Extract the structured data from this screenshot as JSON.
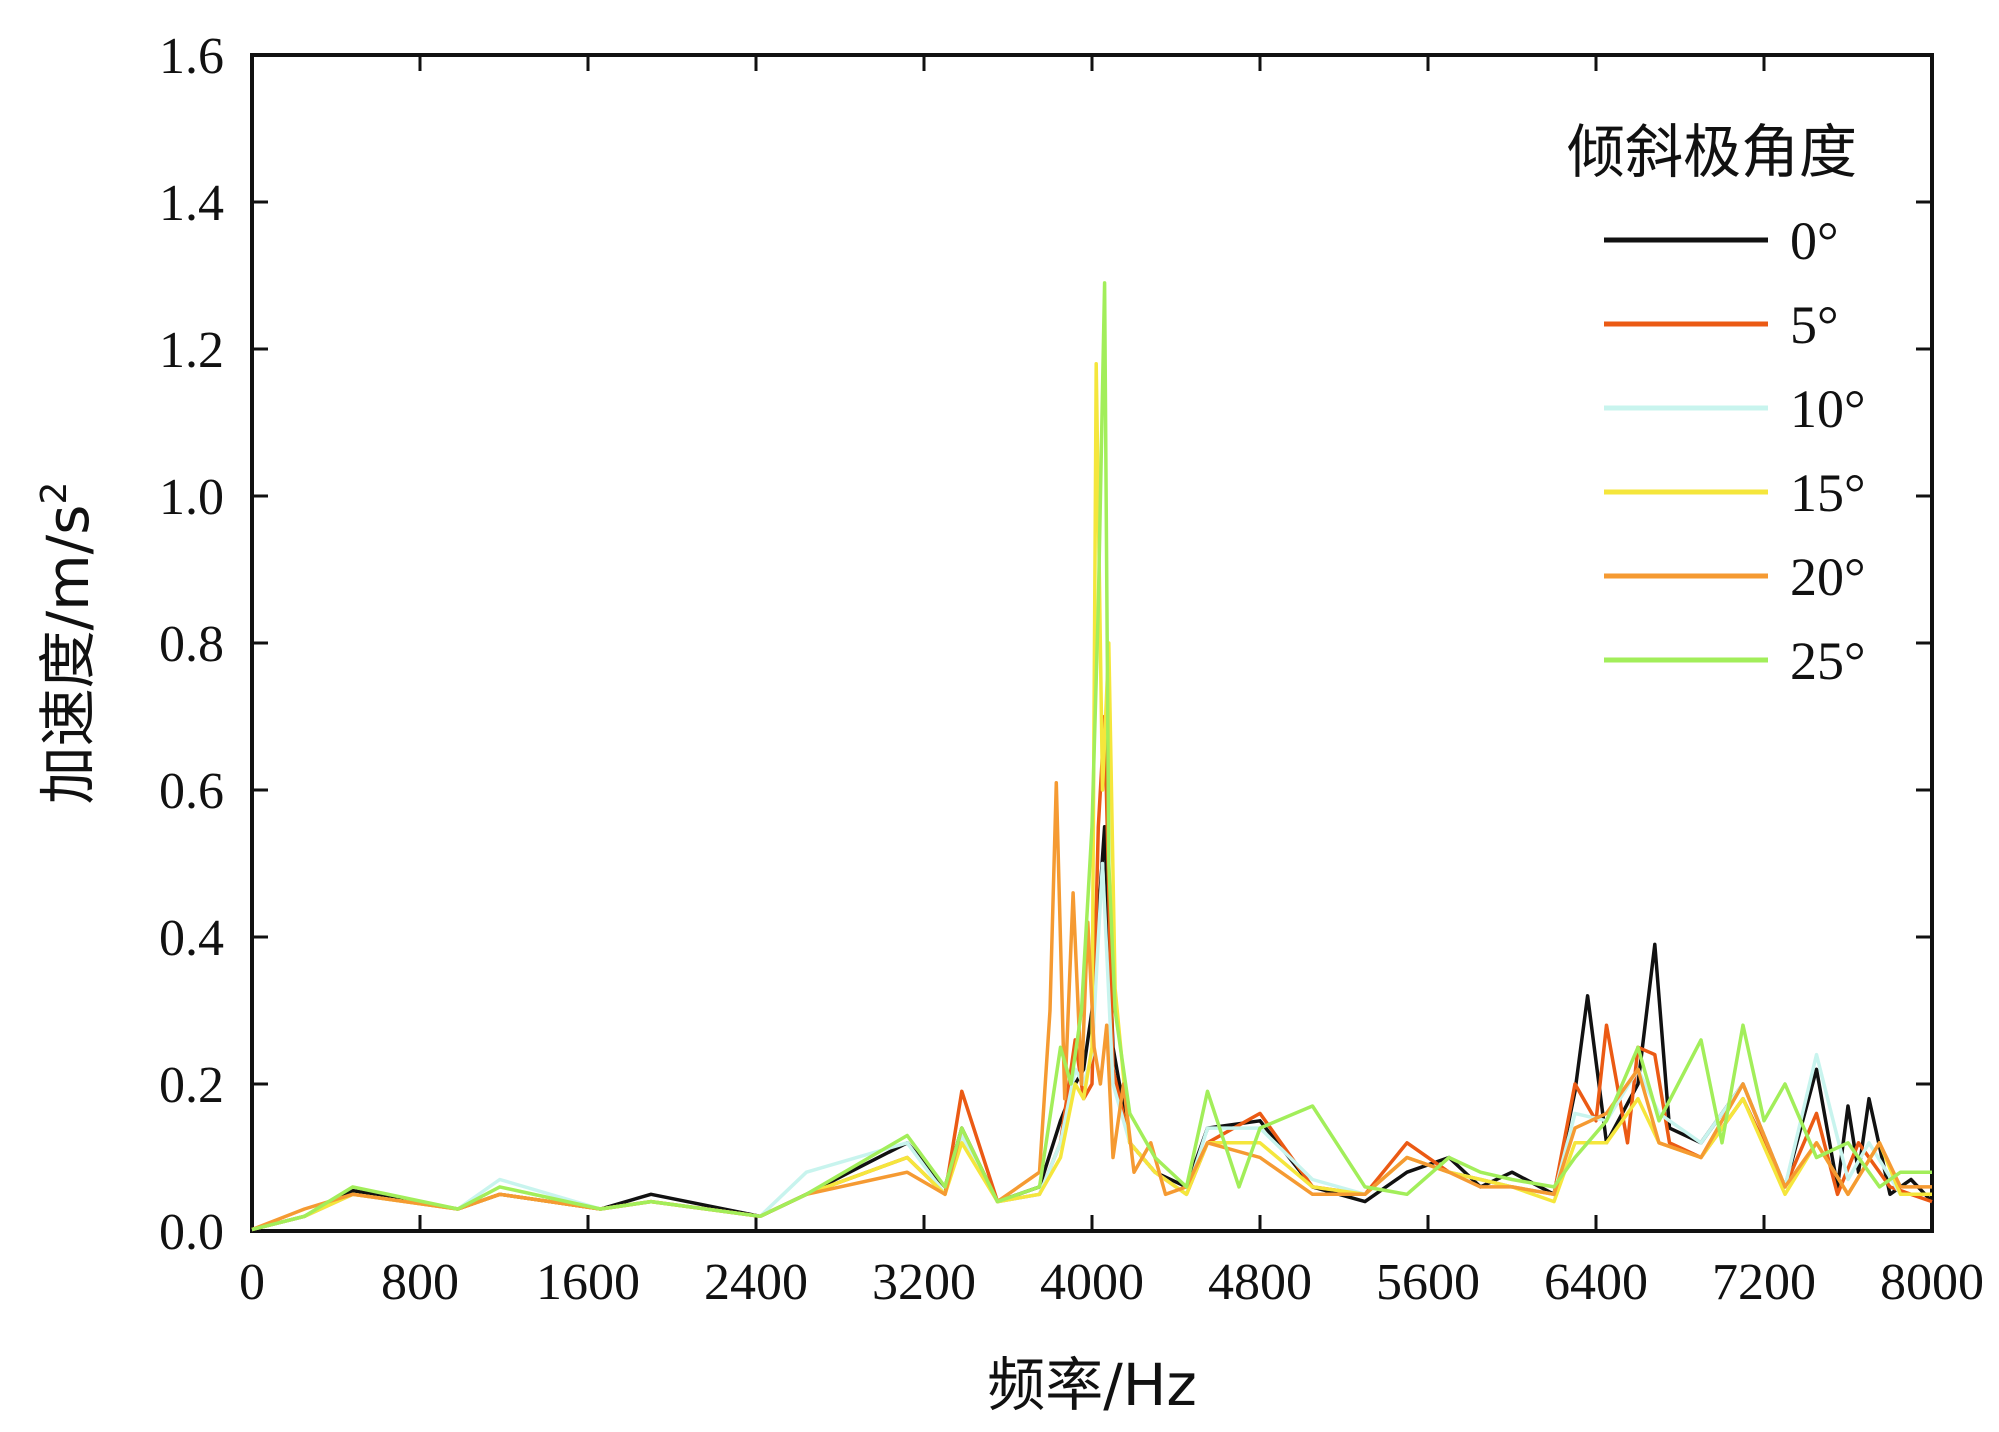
{
  "chart_data": {
    "type": "line",
    "xlabel": "频率/Hz",
    "ylabel_main": "加速度/m/s",
    "ylabel_sup": "2",
    "xlim": [
      0,
      8000
    ],
    "ylim": [
      0,
      1.6
    ],
    "xticks": [
      "0",
      "800",
      "1600",
      "2400",
      "3200",
      "4000",
      "4800",
      "5600",
      "6400",
      "7200",
      "8000"
    ],
    "yticks": [
      "0.0",
      "0.2",
      "0.4",
      "0.6",
      "0.8",
      "1.0",
      "1.2",
      "1.4",
      "1.6"
    ],
    "legend_title": "倾斜极角度",
    "legend_position": "top-right",
    "grid": false,
    "series": [
      {
        "name": "0°",
        "color": "#111111",
        "x": [
          0,
          250,
          480,
          980,
          1180,
          1660,
          1900,
          2420,
          2640,
          3120,
          3300,
          3380,
          3550,
          3750,
          3850,
          3920,
          3960,
          4000,
          4060,
          4100,
          4180,
          4300,
          4450,
          4550,
          4800,
          5050,
          5300,
          5500,
          5700,
          5850,
          6000,
          6200,
          6300,
          6360,
          6450,
          6600,
          6680,
          6750,
          6900,
          7100,
          7300,
          7450,
          7550,
          7600,
          7650,
          7700,
          7800,
          7900,
          8000
        ],
        "y": [
          0.002,
          0.02,
          0.055,
          0.03,
          0.05,
          0.03,
          0.05,
          0.02,
          0.05,
          0.12,
          0.06,
          0.14,
          0.04,
          0.06,
          0.15,
          0.2,
          0.22,
          0.3,
          0.55,
          0.25,
          0.12,
          0.08,
          0.06,
          0.14,
          0.15,
          0.06,
          0.04,
          0.08,
          0.1,
          0.06,
          0.08,
          0.05,
          0.19,
          0.32,
          0.12,
          0.2,
          0.39,
          0.14,
          0.12,
          0.2,
          0.06,
          0.22,
          0.06,
          0.17,
          0.08,
          0.18,
          0.05,
          0.07,
          0.04
        ]
      },
      {
        "name": "5°",
        "color": "#EB5A14",
        "x": [
          0,
          250,
          480,
          980,
          1180,
          1660,
          1900,
          2420,
          2640,
          3120,
          3300,
          3380,
          3550,
          3750,
          3850,
          3920,
          3960,
          4000,
          4030,
          4060,
          4100,
          4180,
          4300,
          4450,
          4550,
          4800,
          5050,
          5300,
          5500,
          5700,
          5850,
          6000,
          6200,
          6300,
          6400,
          6450,
          6550,
          6600,
          6680,
          6750,
          6900,
          7100,
          7300,
          7450,
          7550,
          7650,
          7800,
          7900,
          8000
        ],
        "y": [
          0.002,
          0.02,
          0.05,
          0.03,
          0.05,
          0.03,
          0.04,
          0.02,
          0.05,
          0.1,
          0.05,
          0.19,
          0.04,
          0.05,
          0.12,
          0.26,
          0.18,
          0.2,
          0.55,
          0.7,
          0.22,
          0.12,
          0.08,
          0.05,
          0.12,
          0.16,
          0.06,
          0.05,
          0.12,
          0.08,
          0.07,
          0.06,
          0.05,
          0.2,
          0.15,
          0.28,
          0.12,
          0.25,
          0.24,
          0.12,
          0.1,
          0.18,
          0.06,
          0.16,
          0.05,
          0.12,
          0.06,
          0.05,
          0.04
        ]
      },
      {
        "name": "10°",
        "color": "#C8F4EE",
        "x": [
          0,
          250,
          480,
          980,
          1180,
          1660,
          1900,
          2420,
          2640,
          3120,
          3300,
          3380,
          3550,
          3750,
          3850,
          3920,
          3960,
          4000,
          4050,
          4100,
          4180,
          4300,
          4450,
          4550,
          4800,
          5050,
          5300,
          5500,
          5700,
          5850,
          6000,
          6200,
          6300,
          6450,
          6600,
          6700,
          6900,
          7100,
          7300,
          7450,
          7600,
          7700,
          7850,
          8000
        ],
        "y": [
          0.002,
          0.02,
          0.05,
          0.03,
          0.07,
          0.03,
          0.04,
          0.02,
          0.08,
          0.12,
          0.05,
          0.13,
          0.04,
          0.05,
          0.12,
          0.22,
          0.2,
          0.24,
          0.5,
          0.2,
          0.12,
          0.08,
          0.05,
          0.14,
          0.14,
          0.07,
          0.05,
          0.1,
          0.08,
          0.07,
          0.06,
          0.05,
          0.16,
          0.15,
          0.22,
          0.16,
          0.12,
          0.2,
          0.06,
          0.24,
          0.07,
          0.12,
          0.05,
          0.05
        ]
      },
      {
        "name": "15°",
        "color": "#F5E63C",
        "x": [
          0,
          250,
          480,
          980,
          1180,
          1660,
          1900,
          2420,
          2640,
          3120,
          3300,
          3380,
          3550,
          3750,
          3850,
          3920,
          3960,
          4000,
          4020,
          4050,
          4080,
          4110,
          4180,
          4300,
          4450,
          4550,
          4800,
          5050,
          5300,
          5500,
          5700,
          5850,
          6000,
          6200,
          6300,
          6450,
          6600,
          6700,
          6900,
          7100,
          7300,
          7450,
          7600,
          7750,
          7850,
          8000
        ],
        "y": [
          0.002,
          0.02,
          0.05,
          0.03,
          0.05,
          0.03,
          0.04,
          0.02,
          0.05,
          0.1,
          0.05,
          0.12,
          0.04,
          0.05,
          0.1,
          0.2,
          0.18,
          0.25,
          1.18,
          0.6,
          0.8,
          0.33,
          0.12,
          0.08,
          0.05,
          0.12,
          0.12,
          0.06,
          0.05,
          0.1,
          0.08,
          0.07,
          0.06,
          0.04,
          0.12,
          0.12,
          0.18,
          0.12,
          0.1,
          0.18,
          0.05,
          0.12,
          0.05,
          0.12,
          0.05,
          0.05
        ]
      },
      {
        "name": "20°",
        "color": "#F59A32",
        "x": [
          0,
          250,
          480,
          980,
          1180,
          1660,
          1900,
          2420,
          2640,
          3120,
          3300,
          3380,
          3550,
          3750,
          3800,
          3830,
          3870,
          3910,
          3950,
          3980,
          4010,
          4040,
          4070,
          4100,
          4150,
          4200,
          4280,
          4350,
          4450,
          4550,
          4800,
          5050,
          5300,
          5500,
          5700,
          5850,
          6000,
          6200,
          6300,
          6450,
          6600,
          6700,
          6900,
          7100,
          7300,
          7450,
          7600,
          7750,
          7850,
          8000
        ],
        "y": [
          0.002,
          0.03,
          0.05,
          0.03,
          0.05,
          0.03,
          0.04,
          0.02,
          0.05,
          0.08,
          0.05,
          0.14,
          0.04,
          0.08,
          0.3,
          0.61,
          0.18,
          0.46,
          0.2,
          0.42,
          0.25,
          0.2,
          0.28,
          0.1,
          0.2,
          0.08,
          0.12,
          0.05,
          0.06,
          0.12,
          0.1,
          0.05,
          0.05,
          0.1,
          0.08,
          0.06,
          0.06,
          0.05,
          0.14,
          0.16,
          0.22,
          0.12,
          0.1,
          0.2,
          0.06,
          0.12,
          0.05,
          0.12,
          0.06,
          0.06
        ]
      },
      {
        "name": "25°",
        "color": "#A2EE5A",
        "x": [
          0,
          250,
          480,
          980,
          1180,
          1660,
          1900,
          2420,
          2640,
          3120,
          3300,
          3380,
          3550,
          3750,
          3850,
          3900,
          3950,
          4000,
          4030,
          4060,
          4080,
          4110,
          4180,
          4300,
          4450,
          4550,
          4700,
          4800,
          5050,
          5300,
          5500,
          5700,
          5850,
          6000,
          6200,
          6300,
          6450,
          6600,
          6700,
          6900,
          7000,
          7100,
          7200,
          7300,
          7450,
          7600,
          7750,
          7850,
          8000
        ],
        "y": [
          0.002,
          0.02,
          0.06,
          0.03,
          0.06,
          0.03,
          0.04,
          0.02,
          0.05,
          0.13,
          0.06,
          0.14,
          0.04,
          0.06,
          0.25,
          0.2,
          0.3,
          0.55,
          0.85,
          1.29,
          0.5,
          0.3,
          0.16,
          0.1,
          0.06,
          0.19,
          0.06,
          0.14,
          0.17,
          0.06,
          0.05,
          0.1,
          0.08,
          0.07,
          0.06,
          0.1,
          0.15,
          0.25,
          0.15,
          0.26,
          0.12,
          0.28,
          0.15,
          0.2,
          0.1,
          0.12,
          0.06,
          0.08,
          0.08
        ]
      }
    ]
  }
}
